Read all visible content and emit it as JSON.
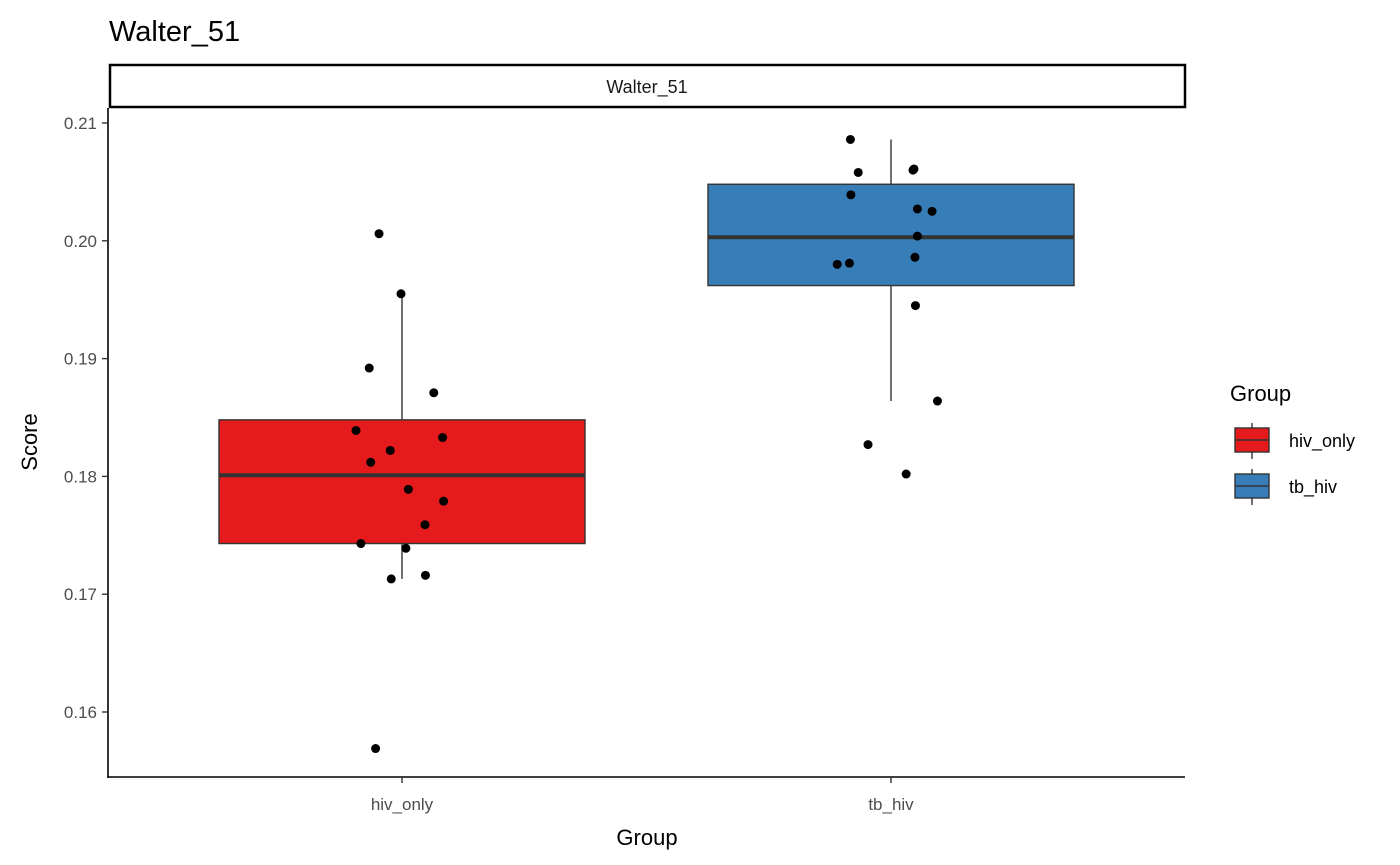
{
  "chart_data": {
    "type": "box",
    "title": "Walter_51",
    "facet_label": "Walter_51",
    "xlabel": "Group",
    "ylabel": "Score",
    "categories": [
      "hiv_only",
      "tb_hiv"
    ],
    "ylim": [
      0.1545,
      0.2115
    ],
    "yticks": [
      0.16,
      0.17,
      0.18,
      0.19,
      0.2,
      0.21
    ],
    "ytick_labels": [
      "0.16",
      "0.17",
      "0.18",
      "0.19",
      "0.20",
      "0.21"
    ],
    "grid": false,
    "legend": {
      "title": "Group",
      "position": "right",
      "entries": [
        "hiv_only",
        "tb_hiv"
      ]
    },
    "colors": {
      "hiv_only": "#E41A1C",
      "tb_hiv": "#377EB8",
      "median": "#333333",
      "points": "#000000"
    },
    "boxes": [
      {
        "group": "hiv_only",
        "whisker_low": 0.1713,
        "q1": 0.1743,
        "median": 0.1801,
        "q3": 0.1848,
        "whisker_high": 0.1955
      },
      {
        "group": "tb_hiv",
        "whisker_low": 0.1864,
        "q1": 0.1962,
        "median": 0.2003,
        "q3": 0.2048,
        "whisker_high": 0.2086
      }
    ],
    "points": {
      "hiv_only": [
        {
          "x": 0.953,
          "y": 0.2006
        },
        {
          "x": 0.998,
          "y": 0.1955
        },
        {
          "x": 0.933,
          "y": 0.1892
        },
        {
          "x": 1.065,
          "y": 0.1871
        },
        {
          "x": 0.906,
          "y": 0.1839
        },
        {
          "x": 1.083,
          "y": 0.1833
        },
        {
          "x": 0.976,
          "y": 0.1822
        },
        {
          "x": 0.936,
          "y": 0.1812
        },
        {
          "x": 1.013,
          "y": 0.1789
        },
        {
          "x": 1.085,
          "y": 0.1779
        },
        {
          "x": 1.047,
          "y": 0.1759
        },
        {
          "x": 0.916,
          "y": 0.1743
        },
        {
          "x": 1.008,
          "y": 0.1739
        },
        {
          "x": 0.978,
          "y": 0.1713
        },
        {
          "x": 1.048,
          "y": 0.1716
        },
        {
          "x": 0.946,
          "y": 0.1569
        }
      ],
      "tb_hiv": [
        {
          "x": 1.917,
          "y": 0.2086
        },
        {
          "x": 1.933,
          "y": 0.2058
        },
        {
          "x": 2.047,
          "y": 0.2061
        },
        {
          "x": 2.045,
          "y": 0.206
        },
        {
          "x": 1.918,
          "y": 0.2039
        },
        {
          "x": 2.054,
          "y": 0.2027
        },
        {
          "x": 2.084,
          "y": 0.2025
        },
        {
          "x": 2.054,
          "y": 0.2004
        },
        {
          "x": 2.049,
          "y": 0.1986
        },
        {
          "x": 1.89,
          "y": 0.198
        },
        {
          "x": 1.915,
          "y": 0.1981
        },
        {
          "x": 2.05,
          "y": 0.1945
        },
        {
          "x": 2.095,
          "y": 0.1864
        },
        {
          "x": 1.953,
          "y": 0.1827
        },
        {
          "x": 2.031,
          "y": 0.1802
        }
      ]
    }
  }
}
